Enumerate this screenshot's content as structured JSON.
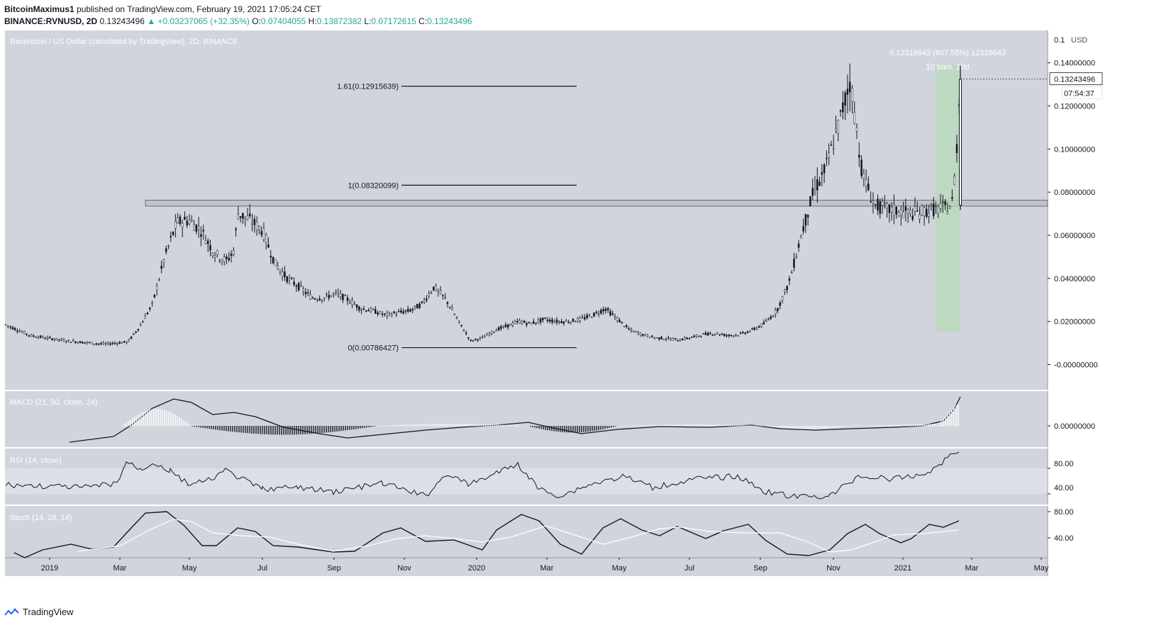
{
  "header": {
    "author": "BitcoinMaximus1",
    "published_text": "published on TradingView.com, February 19, 2021 17:05:24 CET",
    "symbol": "BINANCE:RVNUSD, 2D",
    "last": "0.13243496",
    "change": "▲ +0.03237065 (+32.35%)",
    "o_label": "O:",
    "o_value": "0.07404055",
    "h_label": "H:",
    "h_value": "0.13872382",
    "l_label": "L:",
    "l_value": "0.07172615",
    "c_label": "C:",
    "c_value": "0.13243496"
  },
  "footer": {
    "brand": "TradingView"
  },
  "colors": {
    "pane_bg": "#d1d4dc",
    "candle": "#131722",
    "measure_fill": "#b7dcb7",
    "up_text": "#26a69a"
  },
  "chart_data": {
    "type": "line",
    "title": "Ravencoin / US Dollar (calculated by TradingView), 2D, BINANCE",
    "currency": "USD",
    "x_ticks": [
      "2019",
      "Mar",
      "May",
      "Jul",
      "Sep",
      "Nov",
      "2020",
      "Mar",
      "May",
      "Jul",
      "Sep",
      "Nov",
      "2021",
      "Mar",
      "May"
    ],
    "y_ticks": [
      "0.14000000",
      "0.12000000",
      "0.10000000",
      "0.08000000",
      "0.06000000",
      "0.04000000",
      "0.02000000",
      "-0.00000000"
    ],
    "y_top_partial": "0.1",
    "ylim": [
      -0.012,
      0.155
    ],
    "price_label": "0.13243496",
    "countdown_label": "07:54:37",
    "fib_levels": [
      {
        "label": "1.61(0.12915639)",
        "value": 0.12915639
      },
      {
        "label": "1(0.08320099)",
        "value": 0.08320099
      },
      {
        "label": "0(0.00786427)",
        "value": 0.00786427
      }
    ],
    "resistance_zone": [
      0.0735,
      0.0763
    ],
    "measure": {
      "label1": "0.12316643 (807.55%) 12316643",
      "label2": "10 bars, 20d",
      "from": 0.0153,
      "to": 0.1387
    },
    "price_series": {
      "name": "RVNUSD",
      "t": [
        0,
        2,
        5,
        8,
        10,
        11,
        12,
        13,
        14,
        15,
        16,
        17,
        18,
        18.6,
        19,
        20,
        21,
        22,
        23,
        24,
        25,
        26,
        27,
        28,
        29,
        30,
        31,
        32,
        33,
        34,
        35,
        36,
        37,
        38,
        39,
        40,
        41,
        42,
        42.8,
        43.5,
        44,
        45,
        46,
        47,
        48,
        49,
        50,
        51,
        52,
        53,
        54,
        55,
        56,
        57,
        58,
        59,
        60,
        61,
        62,
        63,
        64,
        65,
        66,
        67,
        68,
        69,
        70,
        71,
        72,
        73,
        74,
        75,
        76,
        77,
        77.3,
        77.6,
        78
      ],
      "y": [
        0.0185,
        0.0135,
        0.011,
        0.0095,
        0.0105,
        0.018,
        0.028,
        0.05,
        0.066,
        0.067,
        0.062,
        0.052,
        0.048,
        0.052,
        0.07,
        0.067,
        0.062,
        0.047,
        0.04,
        0.036,
        0.031,
        0.031,
        0.033,
        0.03,
        0.026,
        0.025,
        0.023,
        0.024,
        0.025,
        0.028,
        0.036,
        0.03,
        0.02,
        0.011,
        0.0125,
        0.016,
        0.018,
        0.02,
        0.019,
        0.02,
        0.021,
        0.02,
        0.02,
        0.021,
        0.023,
        0.026,
        0.021,
        0.016,
        0.014,
        0.0125,
        0.012,
        0.0115,
        0.0125,
        0.014,
        0.0145,
        0.0135,
        0.014,
        0.016,
        0.019,
        0.025,
        0.038,
        0.06,
        0.08,
        0.091,
        0.11,
        0.132,
        0.088,
        0.074,
        0.072,
        0.071,
        0.07,
        0.071,
        0.072,
        0.073,
        0.074,
        0.09,
        0.1324
      ]
    },
    "indicators": [
      {
        "name": "MACD (21, 50, close, 24)",
        "ticks": [
          "0.00000000"
        ]
      },
      {
        "name": "RSI (14, close)",
        "ticks": [
          "80.00",
          "40.00"
        ]
      },
      {
        "name": "Stoch (14, 28, 14)",
        "ticks": [
          "80.00",
          "40.00"
        ]
      }
    ]
  }
}
